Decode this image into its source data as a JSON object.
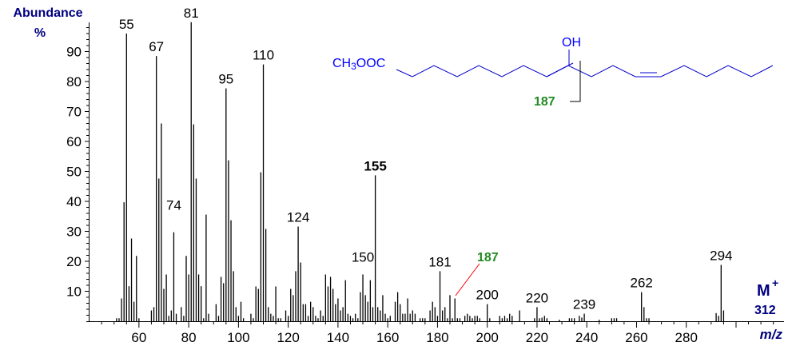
{
  "chart_data": {
    "type": "bar",
    "subtype": "mass-spectrum",
    "title": "",
    "xlabel": "m/z",
    "ylabel": "Abundance %",
    "xlim": [
      40,
      315
    ],
    "ylim": [
      0,
      100
    ],
    "x_ticks": [
      60,
      80,
      100,
      120,
      140,
      160,
      180,
      200,
      220,
      240,
      260,
      280
    ],
    "y_ticks": [
      10,
      20,
      30,
      40,
      50,
      60,
      70,
      80,
      90
    ],
    "grid": false,
    "legend": null,
    "molecular_ion": {
      "label": "M+",
      "value": "312"
    },
    "peaks": [
      [
        51,
        1
      ],
      [
        52,
        1
      ],
      [
        53,
        7.6
      ],
      [
        54,
        39.7
      ],
      [
        55,
        96
      ],
      [
        56,
        11.7
      ],
      [
        57,
        27.6
      ],
      [
        58,
        6.5
      ],
      [
        59,
        21.8
      ],
      [
        60,
        1
      ],
      [
        65,
        3.6
      ],
      [
        66,
        4.7
      ],
      [
        67,
        88.5
      ],
      [
        68,
        47.6
      ],
      [
        69,
        66
      ],
      [
        70,
        10.8
      ],
      [
        71,
        15.6
      ],
      [
        72,
        1.8
      ],
      [
        73,
        3.6
      ],
      [
        74,
        29.7
      ],
      [
        75,
        2.5
      ],
      [
        77,
        4.7
      ],
      [
        78,
        1.8
      ],
      [
        79,
        21.8
      ],
      [
        80,
        15.6
      ],
      [
        81,
        99.8
      ],
      [
        82,
        65.7
      ],
      [
        83,
        47.6
      ],
      [
        84,
        15.6
      ],
      [
        85,
        11.7
      ],
      [
        86,
        1
      ],
      [
        87,
        35.6
      ],
      [
        88,
        2.5
      ],
      [
        91,
        5.7
      ],
      [
        92,
        1.8
      ],
      [
        93,
        14.8
      ],
      [
        94,
        12.7
      ],
      [
        95,
        77.7
      ],
      [
        96,
        53.7
      ],
      [
        97,
        33.7
      ],
      [
        98,
        16.7
      ],
      [
        99,
        4.7
      ],
      [
        100,
        1.8
      ],
      [
        101,
        6.5
      ],
      [
        102,
        1
      ],
      [
        105,
        2.5
      ],
      [
        106,
        1
      ],
      [
        107,
        11.6
      ],
      [
        108,
        10.8
      ],
      [
        109,
        49.7
      ],
      [
        110,
        85.7
      ],
      [
        111,
        30.8
      ],
      [
        112,
        4.7
      ],
      [
        113,
        2.5
      ],
      [
        114,
        1.8
      ],
      [
        115,
        11.6
      ],
      [
        116,
        1
      ],
      [
        117,
        1
      ],
      [
        119,
        3.6
      ],
      [
        120,
        1.8
      ],
      [
        121,
        10.8
      ],
      [
        122,
        8.7
      ],
      [
        123,
        16.7
      ],
      [
        124,
        31.6
      ],
      [
        125,
        19.6
      ],
      [
        126,
        5.7
      ],
      [
        127,
        5.7
      ],
      [
        128,
        1.8
      ],
      [
        129,
        6.5
      ],
      [
        130,
        4.7
      ],
      [
        131,
        1.8
      ],
      [
        132,
        1
      ],
      [
        133,
        3.6
      ],
      [
        134,
        1.8
      ],
      [
        135,
        15.6
      ],
      [
        136,
        11.6
      ],
      [
        137,
        14.8
      ],
      [
        138,
        10.8
      ],
      [
        139,
        5.7
      ],
      [
        140,
        7.6
      ],
      [
        141,
        3.6
      ],
      [
        142,
        4.7
      ],
      [
        143,
        13.7
      ],
      [
        144,
        2.5
      ],
      [
        145,
        1.8
      ],
      [
        146,
        1
      ],
      [
        147,
        2.5
      ],
      [
        148,
        1
      ],
      [
        149,
        9.7
      ],
      [
        150,
        15.6
      ],
      [
        151,
        8.7
      ],
      [
        152,
        6.5
      ],
      [
        153,
        13.7
      ],
      [
        154,
        4.7
      ],
      [
        155,
        48.7
      ],
      [
        156,
        4.7
      ],
      [
        157,
        3.6
      ],
      [
        158,
        8.7
      ],
      [
        159,
        2.5
      ],
      [
        160,
        1
      ],
      [
        161,
        1.8
      ],
      [
        163,
        6.5
      ],
      [
        164,
        9.7
      ],
      [
        165,
        5.7
      ],
      [
        166,
        2.5
      ],
      [
        167,
        2.5
      ],
      [
        168,
        7.6
      ],
      [
        169,
        2.5
      ],
      [
        170,
        3.6
      ],
      [
        171,
        2.5
      ],
      [
        173,
        1
      ],
      [
        174,
        1
      ],
      [
        175,
        1
      ],
      [
        177,
        3.6
      ],
      [
        178,
        6.5
      ],
      [
        179,
        4.7
      ],
      [
        180,
        1.8
      ],
      [
        181,
        16.7
      ],
      [
        182,
        3.6
      ],
      [
        183,
        4.7
      ],
      [
        184,
        1
      ],
      [
        185,
        8.7
      ],
      [
        186,
        1
      ],
      [
        187,
        7.6
      ],
      [
        188,
        1
      ],
      [
        189,
        1
      ],
      [
        191,
        1.8
      ],
      [
        192,
        2.5
      ],
      [
        193,
        1.8
      ],
      [
        194,
        1
      ],
      [
        195,
        1.8
      ],
      [
        196,
        1.8
      ],
      [
        197,
        1
      ],
      [
        200,
        5.7
      ],
      [
        201,
        1
      ],
      [
        205,
        1.8
      ],
      [
        206,
        1
      ],
      [
        207,
        1.8
      ],
      [
        208,
        1
      ],
      [
        209,
        2.5
      ],
      [
        210,
        1.8
      ],
      [
        213,
        3.6
      ],
      [
        219,
        1
      ],
      [
        220,
        4.7
      ],
      [
        221,
        1
      ],
      [
        222,
        1.2
      ],
      [
        223,
        1.8
      ],
      [
        224,
        1
      ],
      [
        229,
        0.5
      ],
      [
        233,
        1
      ],
      [
        234,
        1
      ],
      [
        235,
        1
      ],
      [
        237,
        1.8
      ],
      [
        238,
        1.2
      ],
      [
        239,
        2.5
      ],
      [
        245,
        0.5
      ],
      [
        250,
        1
      ],
      [
        251,
        1
      ],
      [
        252,
        1
      ],
      [
        262,
        9.7
      ],
      [
        263,
        4.7
      ],
      [
        264,
        1
      ],
      [
        265,
        1
      ],
      [
        292,
        2.7
      ],
      [
        293,
        1.8
      ],
      [
        294,
        18.8
      ],
      [
        295,
        3.6
      ]
    ],
    "labeled_peaks": [
      {
        "mz": 55,
        "text": "55",
        "color": "#000000"
      },
      {
        "mz": 67,
        "text": "67",
        "color": "#000000"
      },
      {
        "mz": 74,
        "text": "74",
        "color": "#000000",
        "offset_y": -22
      },
      {
        "mz": 81,
        "text": "81",
        "color": "#000000"
      },
      {
        "mz": 95,
        "text": "95",
        "color": "#000000"
      },
      {
        "mz": 110,
        "text": "110",
        "color": "#000000"
      },
      {
        "mz": 124,
        "text": "124",
        "color": "#000000"
      },
      {
        "mz": 150,
        "text": "150",
        "color": "#000000",
        "offset_y": -10
      },
      {
        "mz": 155,
        "text": "155",
        "color": "#0a85c4",
        "bold": true
      },
      {
        "mz": 181,
        "text": "181",
        "color": "#000000"
      },
      {
        "mz": 200,
        "text": "200",
        "color": "#000000"
      },
      {
        "mz": 220,
        "text": "220",
        "color": "#000000"
      },
      {
        "mz": 239,
        "text": "239",
        "color": "#000000"
      },
      {
        "mz": 262,
        "text": "262",
        "color": "#000000"
      },
      {
        "mz": 294,
        "text": "294",
        "color": "#000000"
      }
    ],
    "annotations": [
      {
        "text": "187",
        "mz": 187,
        "color": "#228b22",
        "bold": true,
        "leader_color": "#ff0000"
      }
    ]
  },
  "labels": {
    "y_title_line1": "Abundance",
    "y_title_line2": "%",
    "x_title": "m/z",
    "molecular_ion_label": "M",
    "molecular_ion_sup": "+",
    "molecular_ion_value": "312"
  },
  "structure": {
    "head_group": "CH3OOC",
    "head_parts": [
      "CH",
      "3",
      "OOC"
    ],
    "substituent": "OH",
    "fragment_label": "187",
    "colors": {
      "bonds": "#0000cc",
      "text": "#0000ff",
      "fragment": "#228b22",
      "cleavage": "#000000"
    }
  },
  "colors": {
    "axis": "#000000",
    "peaks": "#000000",
    "axis_title": "#000080",
    "highlight_155": "#0a85c4",
    "highlight_187": "#228b22",
    "leader": "#ff0000"
  }
}
